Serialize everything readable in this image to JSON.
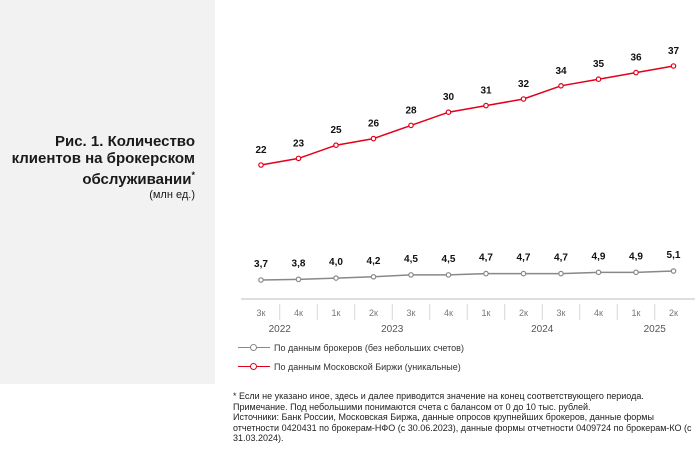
{
  "title": "Рис. 1. Количество клиентов на брокерском обслуживании",
  "title_mark": "*",
  "subtitle": "(млн ед.)",
  "chart_data": {
    "type": "line",
    "categories": [
      "3к",
      "4к",
      "1к",
      "2к",
      "3к",
      "4к",
      "1к",
      "2к",
      "3к",
      "4к",
      "1к",
      "2к"
    ],
    "years": [
      {
        "label": "2022",
        "from": 0,
        "to": 1
      },
      {
        "label": "2023",
        "from": 2,
        "to": 5
      },
      {
        "label": "2024",
        "from": 6,
        "to": 9
      },
      {
        "label": "2025",
        "from": 10,
        "to": 11
      }
    ],
    "series": [
      {
        "name": "По данным Московской Биржи (уникальные)",
        "color": "#e3001b",
        "values": [
          22,
          23,
          25,
          26,
          28,
          30,
          31,
          32,
          34,
          35,
          36,
          37
        ],
        "labels": [
          "22",
          "23",
          "25",
          "26",
          "28",
          "30",
          "31",
          "32",
          "34",
          "35",
          "36",
          "37"
        ]
      },
      {
        "name": "По данным брокеров (без небольших счетов)",
        "color": "#888888",
        "values": [
          3.7,
          3.8,
          4.0,
          4.2,
          4.5,
          4.5,
          4.7,
          4.7,
          4.7,
          4.9,
          4.9,
          5.1
        ],
        "labels": [
          "3,7",
          "3,8",
          "4,0",
          "4,2",
          "4,5",
          "4,5",
          "4,7",
          "4,7",
          "4,7",
          "4,9",
          "4,9",
          "5,1"
        ]
      }
    ],
    "ylabel": "млн ед.",
    "xlabel": ""
  },
  "legend": [
    {
      "label": "По данным брокеров (без небольших счетов)",
      "color": "#888888"
    },
    {
      "label": "По данным Московской Биржи (уникальные)",
      "color": "#e3001b"
    }
  ],
  "notes": [
    "* Если не указано иное, здесь и далее приводится значение на конец соответствующего периода.",
    "Примечание. Под небольшими понимаются счета с балансом от 0 до 10 тыс. рублей.",
    "Источники: Банк России, Московская Биржа, данные опросов крупнейших брокеров, данные формы отчетности 0420431 по брокерам-НФО (с 30.06.2023), данные формы отчетности 0409724 по брокерам-КО (с 31.03.2024)."
  ]
}
